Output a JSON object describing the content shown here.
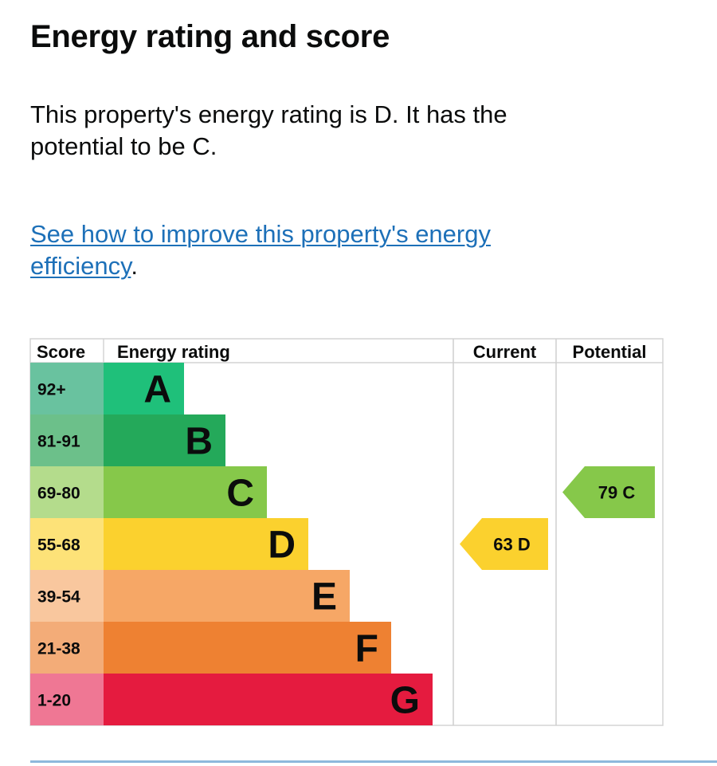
{
  "page": {
    "title": "Energy rating and score",
    "summary": "This property's energy rating is D. It has the potential to be C.",
    "improve_link": "See how to improve this property's energy efficiency",
    "improve_suffix": "."
  },
  "chart_data": {
    "type": "bar",
    "headers": {
      "score": "Score",
      "rating": "Energy rating",
      "current": "Current",
      "potential": "Potential"
    },
    "bands": [
      {
        "letter": "A",
        "range": "92+",
        "color": "#1fc07a",
        "score_bg": "#69c29f"
      },
      {
        "letter": "B",
        "range": "81-91",
        "color": "#24a95a",
        "score_bg": "#6cc08a"
      },
      {
        "letter": "C",
        "range": "69-80",
        "color": "#86c84a",
        "score_bg": "#b4dc8c"
      },
      {
        "letter": "D",
        "range": "55-68",
        "color": "#fbd12e",
        "score_bg": "#fde278"
      },
      {
        "letter": "E",
        "range": "39-54",
        "color": "#f6a766",
        "score_bg": "#f9c79e"
      },
      {
        "letter": "F",
        "range": "21-38",
        "color": "#ee8132",
        "score_bg": "#f3ac78"
      },
      {
        "letter": "G",
        "range": "1-20",
        "color": "#e51b3f",
        "score_bg": "#ef7794"
      }
    ],
    "current": {
      "score": 63,
      "band": "D",
      "label": "63 D"
    },
    "potential": {
      "score": 79,
      "band": "C",
      "label": "79 C"
    }
  }
}
